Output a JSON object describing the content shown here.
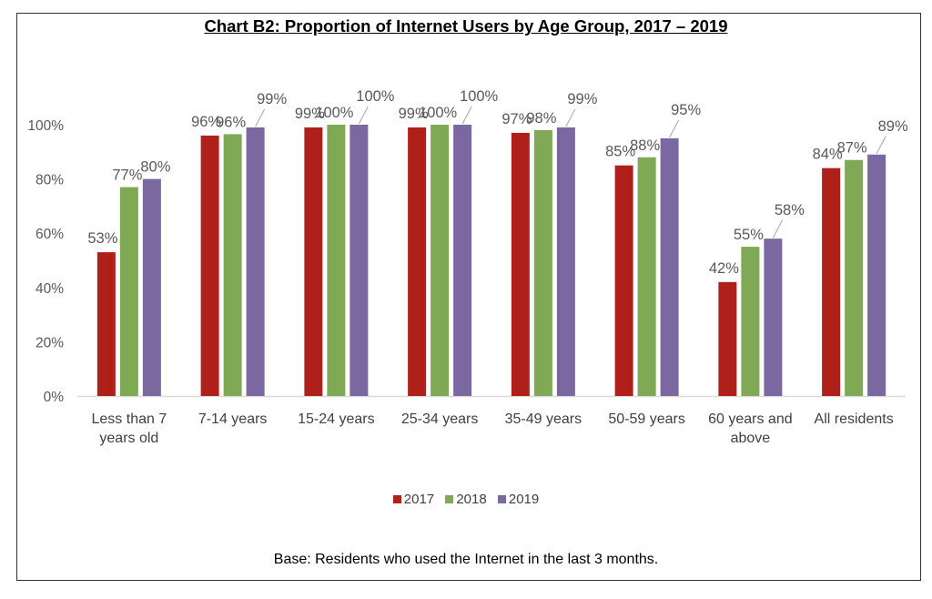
{
  "chart_data": {
    "type": "bar",
    "title": "Chart B2: Proportion of Internet Users by Age Group, 2017 – 2019",
    "xlabel": "",
    "ylabel": "",
    "ylim": [
      0,
      100
    ],
    "yticks": [
      "0%",
      "20%",
      "40%",
      "60%",
      "80%",
      "100%"
    ],
    "ytick_values": [
      0,
      20,
      40,
      60,
      80,
      100
    ],
    "grid": false,
    "legend_position": "bottom",
    "categories": [
      [
        "Less than 7",
        "years old"
      ],
      [
        "7-14 years"
      ],
      [
        "15-24 years"
      ],
      [
        "25-34 years"
      ],
      [
        "35-49 years"
      ],
      [
        "50-59 years"
      ],
      [
        "60 years and",
        "above"
      ],
      [
        "All residents"
      ]
    ],
    "series": [
      {
        "name": "2017",
        "color": "#B0201B",
        "values": [
          53,
          96,
          99,
          99,
          97,
          85,
          42,
          84
        ],
        "labels": [
          "53%",
          "96%",
          "99%",
          "99%",
          "97%",
          "85%",
          "42%",
          "84%"
        ]
      },
      {
        "name": "2018",
        "color": "#7FA955",
        "values": [
          77,
          96.5,
          100,
          100,
          98,
          88,
          55,
          87
        ],
        "labels": [
          "77%",
          "96%",
          "100%",
          "100%",
          "98%",
          "88%",
          "55%",
          "87%"
        ]
      },
      {
        "name": "2019",
        "color": "#7B68A0",
        "values": [
          80,
          99,
          100,
          100,
          99,
          95,
          58,
          89
        ],
        "labels": [
          "80%",
          "99%",
          "100%",
          "100%",
          "99%",
          "95%",
          "58%",
          "89%"
        ]
      }
    ],
    "footnote": "Base: Residents who used the Internet in the last 3 months."
  }
}
